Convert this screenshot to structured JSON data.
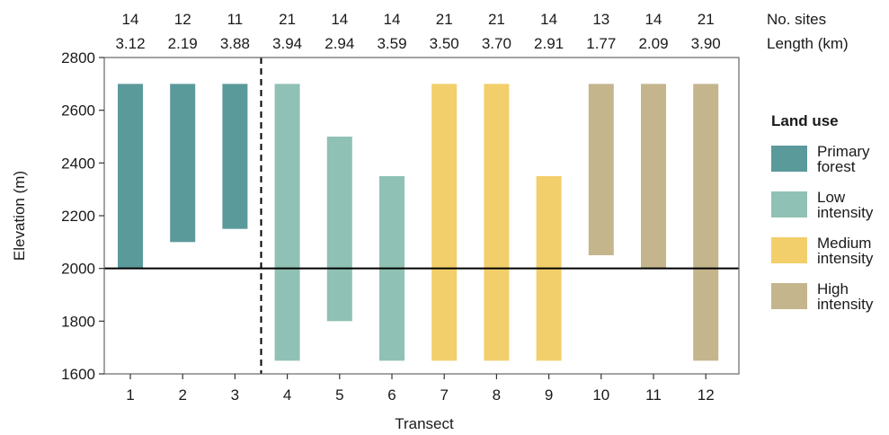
{
  "chart_data": {
    "type": "bar",
    "subtype": "floating-range",
    "xlabel": "Transect",
    "ylabel": "Elevation (m)",
    "ylim": [
      1600,
      2800
    ],
    "yticks": [
      1600,
      1800,
      2000,
      2200,
      2400,
      2600,
      2800
    ],
    "reference_line": 2000,
    "divider_after": "3",
    "top_row_labels": [
      "No. sites",
      "Length (km)"
    ],
    "categories": [
      "1",
      "2",
      "3",
      "4",
      "5",
      "6",
      "7",
      "8",
      "9",
      "10",
      "11",
      "12"
    ],
    "sites": [
      "14",
      "12",
      "11",
      "21",
      "14",
      "14",
      "21",
      "21",
      "14",
      "13",
      "14",
      "21"
    ],
    "length_km": [
      "3.12",
      "2.19",
      "3.88",
      "3.94",
      "2.94",
      "3.59",
      "3.50",
      "3.70",
      "2.91",
      "1.77",
      "2.09",
      "3.90"
    ],
    "ranges": [
      [
        2000,
        2700
      ],
      [
        2100,
        2700
      ],
      [
        2150,
        2700
      ],
      [
        1650,
        2700
      ],
      [
        1800,
        2500
      ],
      [
        1650,
        2350
      ],
      [
        1650,
        2700
      ],
      [
        1650,
        2700
      ],
      [
        1650,
        2350
      ],
      [
        2050,
        2700
      ],
      [
        2000,
        2700
      ],
      [
        1650,
        2700
      ]
    ],
    "land_use": [
      "primary",
      "primary",
      "primary",
      "low",
      "low",
      "low",
      "medium",
      "medium",
      "medium",
      "high",
      "high",
      "high"
    ],
    "legend": {
      "title": "Land use",
      "position": "right",
      "items": [
        {
          "key": "primary",
          "lines": [
            "Primary",
            "forest"
          ],
          "color": "#5b9a9b"
        },
        {
          "key": "low",
          "lines": [
            "Low",
            "intensity"
          ],
          "color": "#8fc1b4"
        },
        {
          "key": "medium",
          "lines": [
            "Medium",
            "intensity"
          ],
          "color": "#f2cf6b"
        },
        {
          "key": "high",
          "lines": [
            "High",
            "intensity"
          ],
          "color": "#c4b58d"
        }
      ]
    }
  }
}
